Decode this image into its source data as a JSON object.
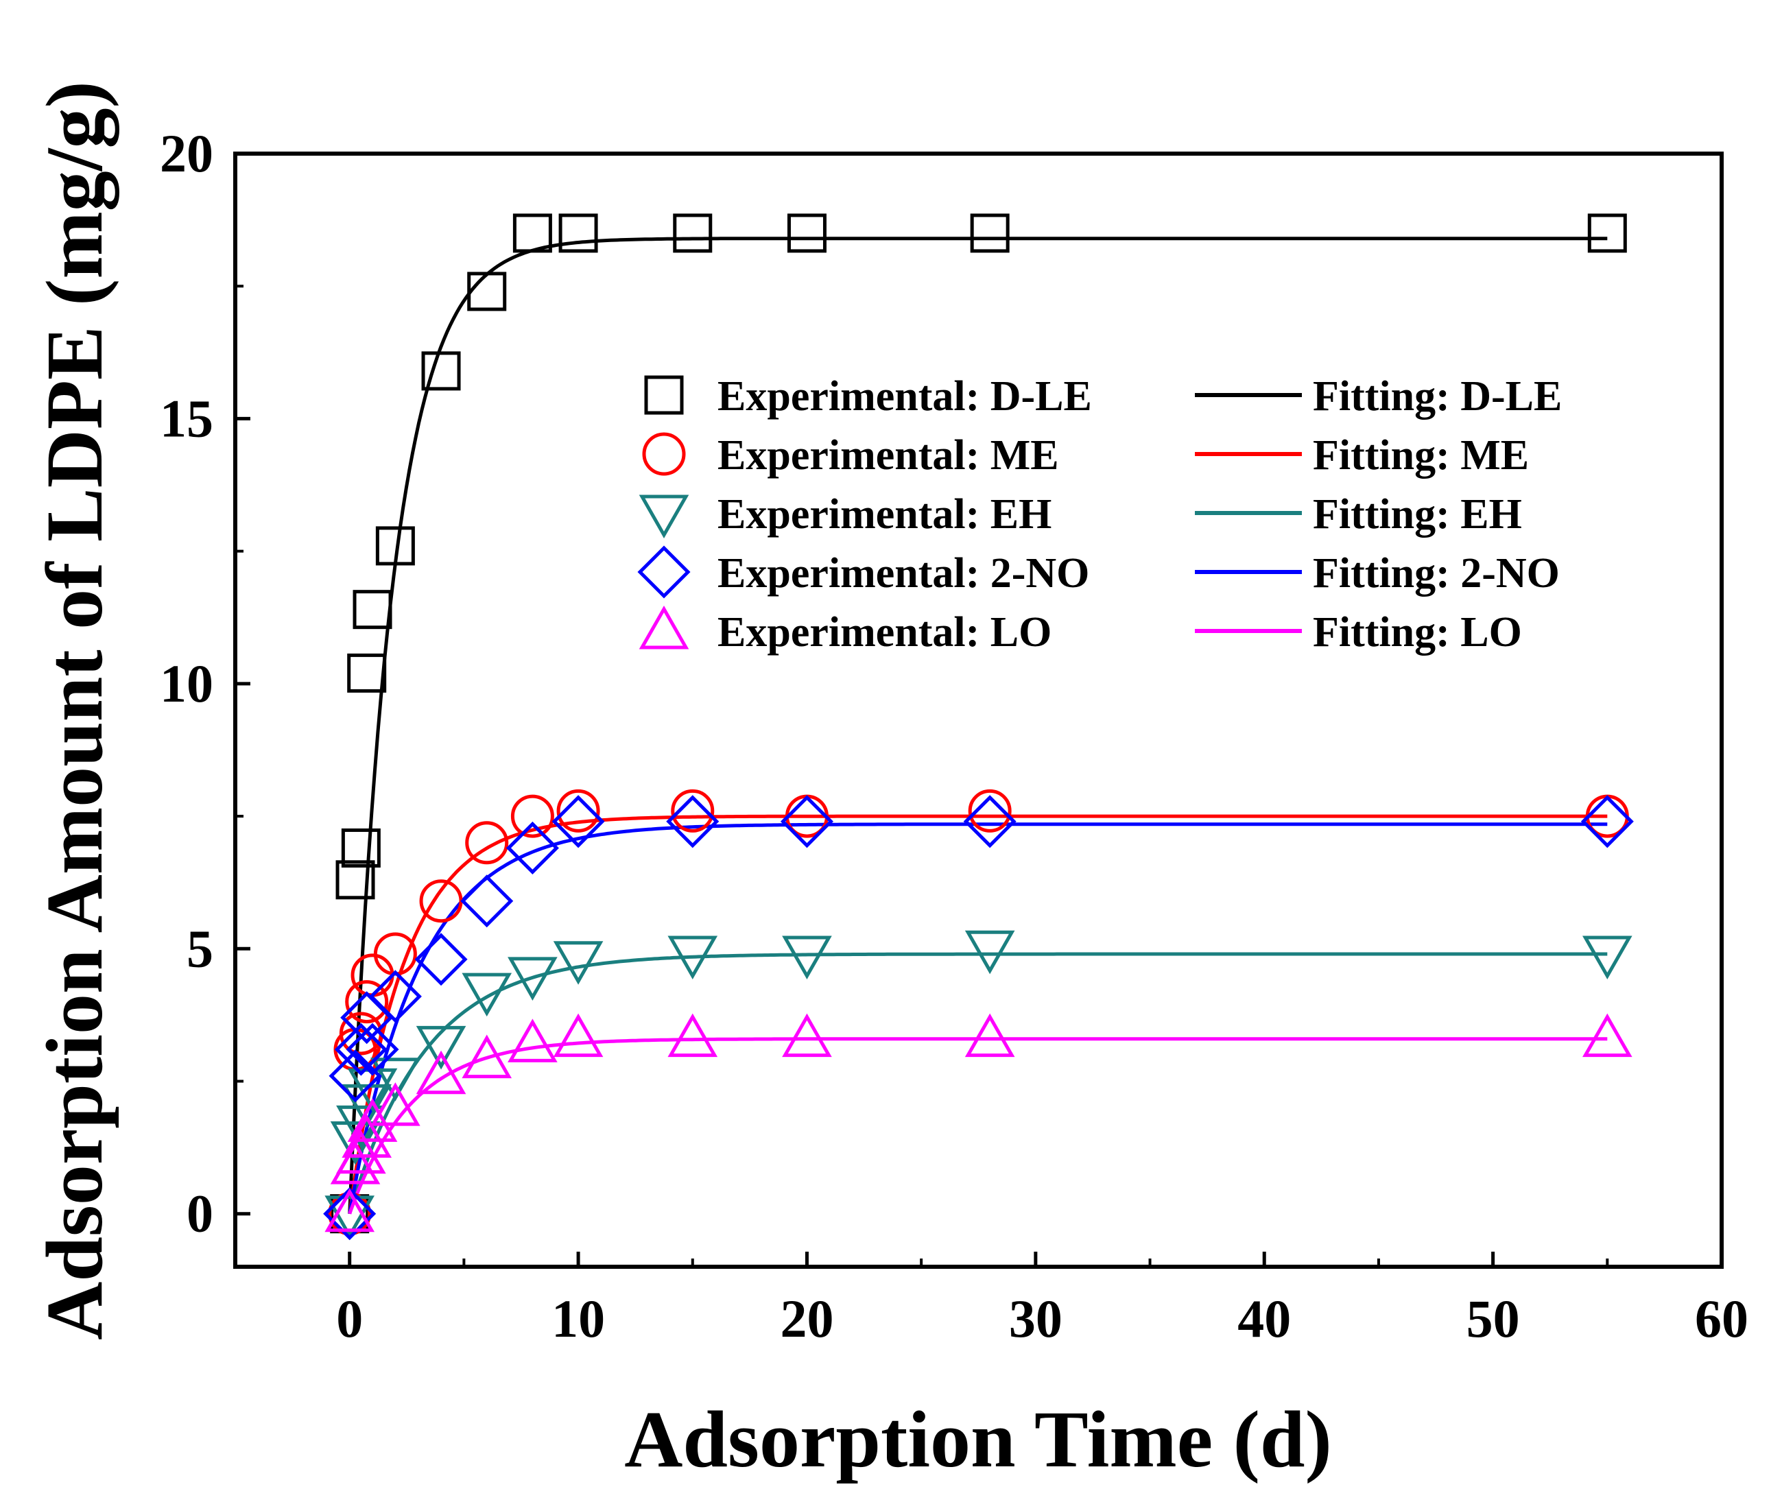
{
  "chart_data": {
    "type": "scatter",
    "xlabel": "Adsorption Time (d)",
    "ylabel": "Adsorption Amount of LDPE (mg/g)",
    "xlim": [
      -5,
      60
    ],
    "ylim": [
      -1,
      20
    ],
    "xticks": [
      0,
      10,
      20,
      30,
      40,
      50,
      60
    ],
    "yticks": [
      0,
      5,
      10,
      15,
      20
    ],
    "xtick_labels": [
      "0",
      "10",
      "20",
      "30",
      "40",
      "50",
      "60"
    ],
    "ytick_labels": [
      "0",
      "5",
      "10",
      "15",
      "20"
    ],
    "grid": false,
    "legend_position": "center-right",
    "series": [
      {
        "name": "Experimental: D-LE",
        "fit_name": "Fitting: D-LE",
        "marker": "square",
        "color": "#000000",
        "x": [
          0,
          0.25,
          0.5,
          0.75,
          1,
          2,
          4,
          6,
          8,
          10,
          15,
          20,
          28,
          55
        ],
        "y": [
          0,
          6.3,
          6.9,
          10.2,
          11.4,
          12.6,
          15.9,
          17.4,
          18.5,
          18.5,
          18.5,
          18.5,
          18.5,
          18.5
        ],
        "fit": {
          "qe": 18.4,
          "k": 0.55
        }
      },
      {
        "name": "Experimental: ME",
        "fit_name": "Fitting: ME",
        "marker": "circle",
        "color": "#ff0000",
        "x": [
          0,
          0.25,
          0.5,
          0.75,
          1,
          2,
          4,
          6,
          8,
          10,
          15,
          20,
          28,
          55
        ],
        "y": [
          0,
          3.1,
          3.4,
          4.0,
          4.5,
          4.9,
          5.9,
          7.0,
          7.5,
          7.6,
          7.6,
          7.5,
          7.6,
          7.5
        ],
        "fit": {
          "qe": 7.5,
          "k": 0.42
        }
      },
      {
        "name": "Experimental: EH",
        "fit_name": "Fitting: EH",
        "marker": "triangle-down",
        "color": "#1a7f7f",
        "x": [
          0,
          0.25,
          0.5,
          0.75,
          1,
          2,
          4,
          6,
          8,
          10,
          15,
          20,
          28,
          55
        ],
        "y": [
          0,
          1.4,
          1.7,
          2.1,
          2.4,
          2.6,
          3.2,
          4.2,
          4.5,
          4.8,
          4.9,
          4.9,
          5.0,
          4.9
        ],
        "fit": {
          "qe": 4.9,
          "k": 0.3
        }
      },
      {
        "name": "Experimental: 2-NO",
        "fit_name": "Fitting: 2-NO",
        "marker": "diamond",
        "color": "#0000ff",
        "x": [
          0,
          0.25,
          0.5,
          0.75,
          1,
          2,
          4,
          6,
          8,
          10,
          15,
          20,
          28,
          55
        ],
        "y": [
          0,
          2.6,
          3.1,
          3.7,
          3.1,
          4.1,
          4.8,
          5.9,
          6.9,
          7.4,
          7.4,
          7.4,
          7.4,
          7.4
        ],
        "fit": {
          "qe": 7.35,
          "k": 0.33
        }
      },
      {
        "name": "Experimental: LO",
        "fit_name": "Fitting: LO",
        "marker": "triangle-up",
        "color": "#ff00ff",
        "x": [
          0,
          0.25,
          0.5,
          0.75,
          1,
          2,
          4,
          6,
          8,
          10,
          15,
          20,
          28,
          55
        ],
        "y": [
          0,
          0.9,
          1.1,
          1.4,
          1.7,
          2.0,
          2.6,
          2.9,
          3.2,
          3.3,
          3.3,
          3.3,
          3.3,
          3.3
        ],
        "fit": {
          "qe": 3.3,
          "k": 0.37
        }
      }
    ]
  }
}
